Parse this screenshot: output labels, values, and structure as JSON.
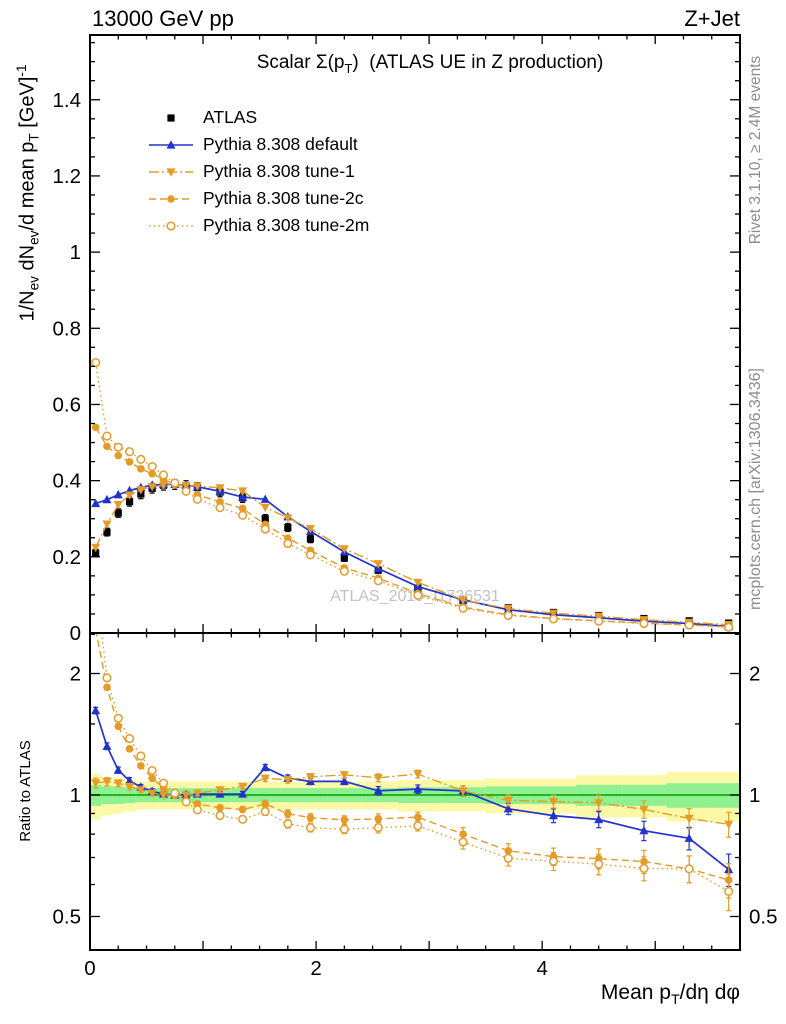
{
  "header": {
    "left": "13000 GeV pp",
    "right": "Z+Jet"
  },
  "panel_title_html": "Scalar Σ(p<sub>T</sub>)&nbsp; (ATLAS UE in Z production)",
  "ylabel_html": "1/N<sub>ev</sub> dN<sub>ev</sub>/d mean p<sub>T</sub> [GeV]<sup>-1</sup>",
  "xlabel_html": "Mean p<sub>T</sub>/dη dφ",
  "ratio_ylabel": "Ratio to ATLAS",
  "right_top": "Rivet 3.1.10, ≥ 2.4M events",
  "right_bottom": "mcplots.cern.ch [arXiv:1306.3436]",
  "watermark": "ATLAS_2019_I1736531",
  "colors": {
    "frame": "#000000",
    "annotation_gray": "#8c8c8c",
    "watermark_gray": "#c2c2c2"
  },
  "chart_data": {
    "type": "line",
    "title": "Scalar Σ(pT) (ATLAS UE in Z production)",
    "xlabel": "Mean pT/dη dφ",
    "ylabel": "1/Nev dNev/d mean pT [GeV]^-1",
    "ratio_label": "Ratio to ATLAS",
    "xlim": [
      0,
      5.75
    ],
    "main_ylim": [
      0,
      1.57
    ],
    "ratio_ylim": [
      0.413,
      2.52
    ],
    "ratio_scale": "log",
    "legend_position": "upper-left",
    "x": [
      0.05,
      0.15,
      0.25,
      0.35,
      0.45,
      0.55,
      0.65,
      0.75,
      0.85,
      0.95,
      1.15,
      1.35,
      1.55,
      1.75,
      1.95,
      2.25,
      2.55,
      2.9,
      3.3,
      3.7,
      4.1,
      4.5,
      4.9,
      5.3,
      5.65
    ],
    "series": [
      {
        "id": "atlas",
        "name": "ATLAS",
        "marker": "square",
        "color": "#000000",
        "linestyle": "none",
        "values": [
          0.21,
          0.265,
          0.315,
          0.345,
          0.365,
          0.38,
          0.388,
          0.39,
          0.387,
          0.382,
          0.37,
          0.355,
          0.3,
          0.277,
          0.247,
          0.197,
          0.165,
          0.118,
          0.085,
          0.066,
          0.054,
          0.046,
          0.038,
          0.032,
          0.026
        ]
      },
      {
        "id": "pythia-default",
        "name": "Pythia 8.308 default",
        "marker": "triangle-up",
        "color": "#2233cc",
        "linestyle": "solid",
        "values": [
          0.34,
          0.35,
          0.363,
          0.374,
          0.382,
          0.388,
          0.39,
          0.39,
          0.388,
          0.384,
          0.372,
          0.357,
          0.351,
          0.305,
          0.267,
          0.213,
          0.169,
          0.122,
          0.087,
          0.061,
          0.048,
          0.04,
          0.031,
          0.025,
          0.017
        ]
      },
      {
        "id": "pythia-tune-1",
        "name": "Pythia 8.308 tune-1",
        "marker": "triangle-down",
        "color": "#e49b27",
        "linestyle": "dashdot",
        "values": [
          0.225,
          0.286,
          0.337,
          0.362,
          0.376,
          0.384,
          0.388,
          0.39,
          0.387,
          0.386,
          0.381,
          0.373,
          0.33,
          0.302,
          0.274,
          0.221,
          0.182,
          0.133,
          0.087,
          0.064,
          0.052,
          0.044,
          0.035,
          0.028,
          0.022
        ]
      },
      {
        "id": "pythia-tune-2c",
        "name": "Pythia 8.308 tune-2c",
        "marker": "circle",
        "color": "#e49b27",
        "linestyle": "dashed",
        "values": [
          0.54,
          0.49,
          0.466,
          0.449,
          0.431,
          0.418,
          0.404,
          0.39,
          0.375,
          0.363,
          0.344,
          0.327,
          0.285,
          0.249,
          0.217,
          0.171,
          0.144,
          0.104,
          0.068,
          0.048,
          0.038,
          0.032,
          0.026,
          0.021,
          0.016
        ]
      },
      {
        "id": "pythia-tune-2m",
        "name": "Pythia 8.308 tune-2m",
        "marker": "circle-open",
        "color": "#e49b27",
        "linestyle": "dotted",
        "values": [
          0.71,
          0.517,
          0.488,
          0.476,
          0.456,
          0.437,
          0.415,
          0.394,
          0.372,
          0.351,
          0.329,
          0.309,
          0.273,
          0.235,
          0.205,
          0.162,
          0.137,
          0.099,
          0.065,
          0.046,
          0.037,
          0.031,
          0.025,
          0.021,
          0.015
        ]
      }
    ],
    "ratio_err": [
      0.03,
      0.025,
      0.02,
      0.02,
      0.015,
      0.015,
      0.015,
      0.015,
      0.015,
      0.015,
      0.015,
      0.015,
      0.02,
      0.02,
      0.02,
      0.02,
      0.025,
      0.025,
      0.03,
      0.03,
      0.035,
      0.04,
      0.045,
      0.05,
      0.06
    ],
    "bands": {
      "yellow": [
        0.13,
        0.11,
        0.1,
        0.09,
        0.08,
        0.08,
        0.08,
        0.08,
        0.08,
        0.08,
        0.08,
        0.08,
        0.08,
        0.08,
        0.08,
        0.08,
        0.08,
        0.09,
        0.09,
        0.1,
        0.1,
        0.12,
        0.12,
        0.14,
        0.14
      ],
      "green": [
        0.06,
        0.05,
        0.05,
        0.045,
        0.04,
        0.04,
        0.04,
        0.04,
        0.04,
        0.04,
        0.04,
        0.04,
        0.04,
        0.04,
        0.04,
        0.04,
        0.04,
        0.045,
        0.045,
        0.05,
        0.05,
        0.06,
        0.06,
        0.07,
        0.07
      ],
      "yellow_color": "#fbf8a8",
      "green_color": "#8ef08e",
      "line_color": "#00a000"
    },
    "ticks": {
      "x_labeled": [
        0,
        2,
        4
      ],
      "x_minor_step": 0.25,
      "y_main_major": [
        0,
        0.2,
        0.4,
        0.6,
        0.8,
        1,
        1.2,
        1.4
      ],
      "ratio": [
        0.5,
        1,
        2
      ],
      "ratio_minor": [
        0.6,
        0.7,
        0.8,
        0.9,
        1.5,
        2.5
      ]
    }
  }
}
